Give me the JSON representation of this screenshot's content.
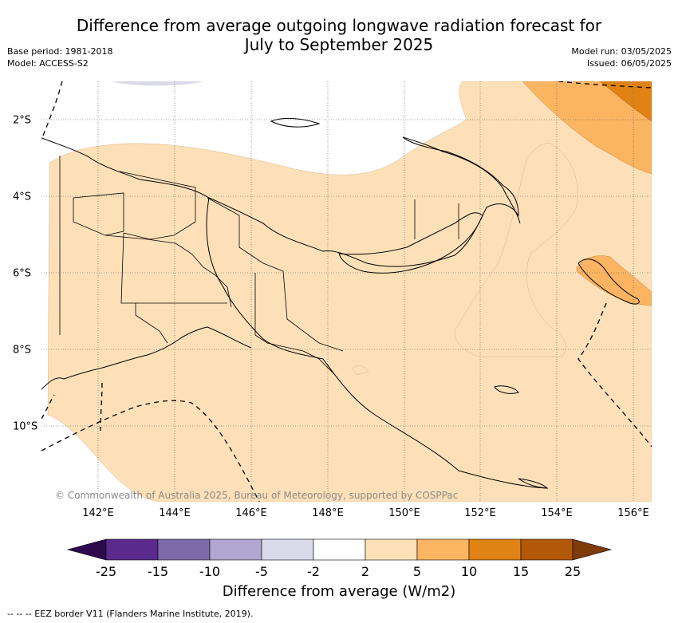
{
  "title_line1": "Difference from average outgoing longwave radiation forecast for",
  "title_line2": "July to September 2025",
  "meta_left": [
    "Base period: 1981-2018",
    "Model: ACCESS-S2"
  ],
  "meta_right": [
    "Model run: 03/05/2025",
    "Issued: 06/05/2025"
  ],
  "lon_labels": [
    "142°E",
    "144°E",
    "146°E",
    "148°E",
    "150°E",
    "152°E",
    "154°E",
    "156°E"
  ],
  "lat_labels": [
    "2°S",
    "4°S",
    "6°S",
    "8°S",
    "10°S"
  ],
  "copyright": "© Commonwealth of Australia 2025, Bureau of Meteorology, supported by COSPPac",
  "colorbar": {
    "ticks": [
      "-25",
      "-15",
      "-10",
      "-5",
      "-2",
      "2",
      "5",
      "10",
      "15",
      "25"
    ],
    "colors": [
      "#2d0a4e",
      "#5a2a8c",
      "#7e6aa8",
      "#b0a6cf",
      "#d9d9ea",
      "#ffffff",
      "#fde0b8",
      "#fbb462",
      "#e08214",
      "#b35806",
      "#7f3b08"
    ],
    "label": "Difference from average (W/m2)"
  },
  "footer": "--  --  -- EEZ border V11 (Flanders Marine Institute, 2019)."
}
